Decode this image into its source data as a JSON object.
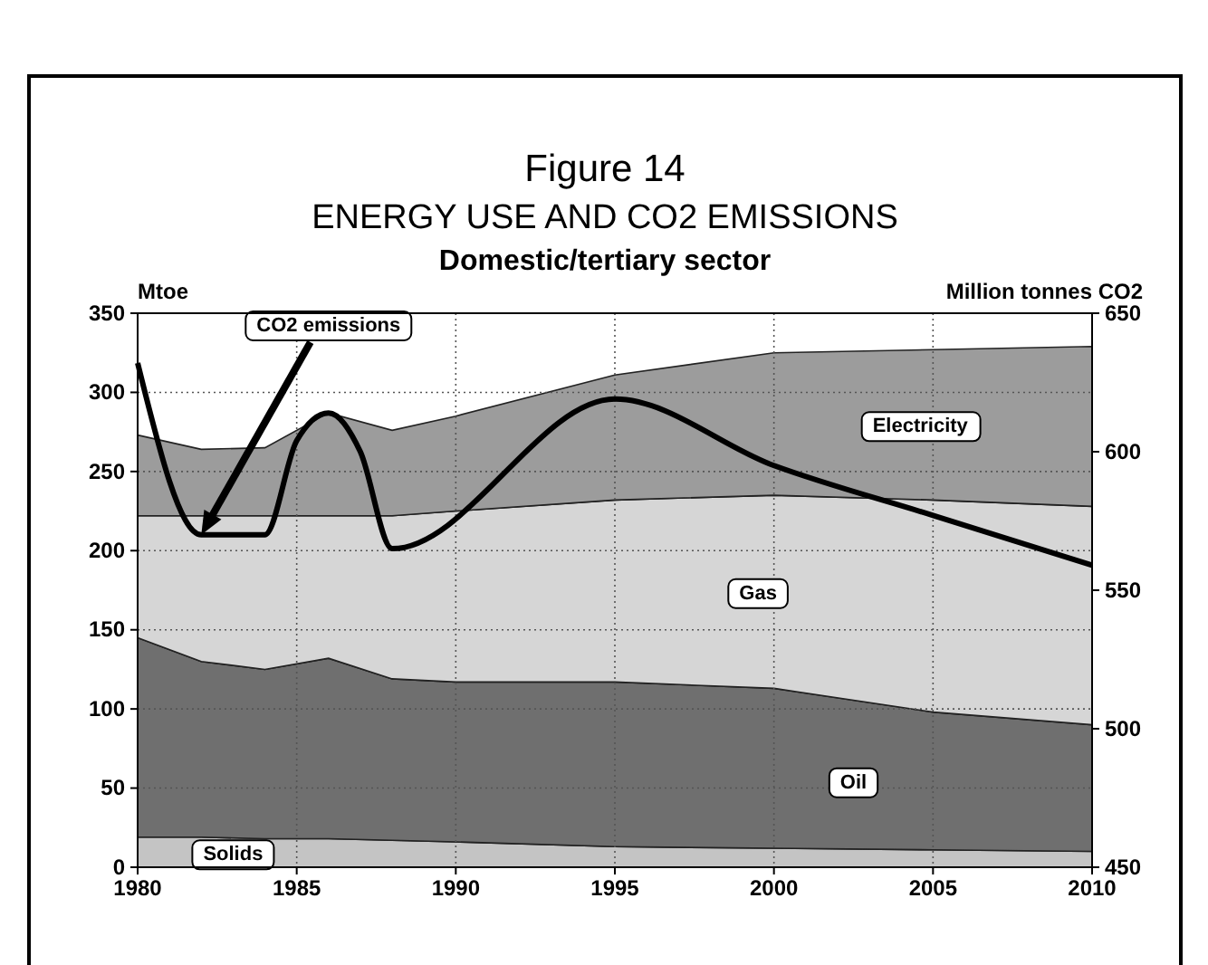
{
  "chart_data": {
    "type": "area",
    "stacked": true,
    "title": "Figure 14",
    "subtitle": "ENERGY USE AND CO2 EMISSIONS",
    "annotations": [
      "Domestic/tertiary sector"
    ],
    "ylabel": "Mtoe",
    "y2label": "Million tonnes CO2",
    "x": [
      1980,
      1982,
      1984,
      1986,
      1988,
      1990,
      1995,
      2000,
      2005,
      2010
    ],
    "xlim": [
      1980,
      2010
    ],
    "xticks": [
      1980,
      1985,
      1990,
      1995,
      2000,
      2005,
      2010
    ],
    "ylim": [
      0,
      350
    ],
    "yticks": [
      0,
      50,
      100,
      150,
      200,
      250,
      300,
      350
    ],
    "y2lim": [
      450,
      650
    ],
    "y2ticks": [
      450,
      500,
      550,
      600,
      650
    ],
    "grid": true,
    "series": [
      {
        "name": "Solids",
        "color": "#c4c4c4",
        "values": [
          19,
          19,
          18,
          18,
          17,
          16,
          13,
          12,
          11,
          10
        ]
      },
      {
        "name": "Oil",
        "color": "#6f6f6f",
        "values": [
          126,
          111,
          107,
          114,
          102,
          101,
          104,
          101,
          87,
          80
        ]
      },
      {
        "name": "Gas",
        "color": "#d6d6d6",
        "values": [
          77,
          92,
          97,
          90,
          103,
          108,
          115,
          122,
          134,
          138
        ]
      },
      {
        "name": "Electricity",
        "color": "#9c9c9c",
        "values": [
          51,
          42,
          43,
          65,
          54,
          60,
          79,
          90,
          95,
          101
        ]
      },
      {
        "name": "CO2 emissions",
        "type": "line",
        "axis": "y2",
        "color": "#000000",
        "x": [
          1980,
          1982,
          1984,
          1985,
          1986,
          1987,
          1988,
          1995,
          2000,
          2005,
          2010
        ],
        "values": [
          632,
          570,
          570,
          604,
          614,
          600,
          565,
          619,
          595,
          577,
          559
        ]
      }
    ]
  }
}
